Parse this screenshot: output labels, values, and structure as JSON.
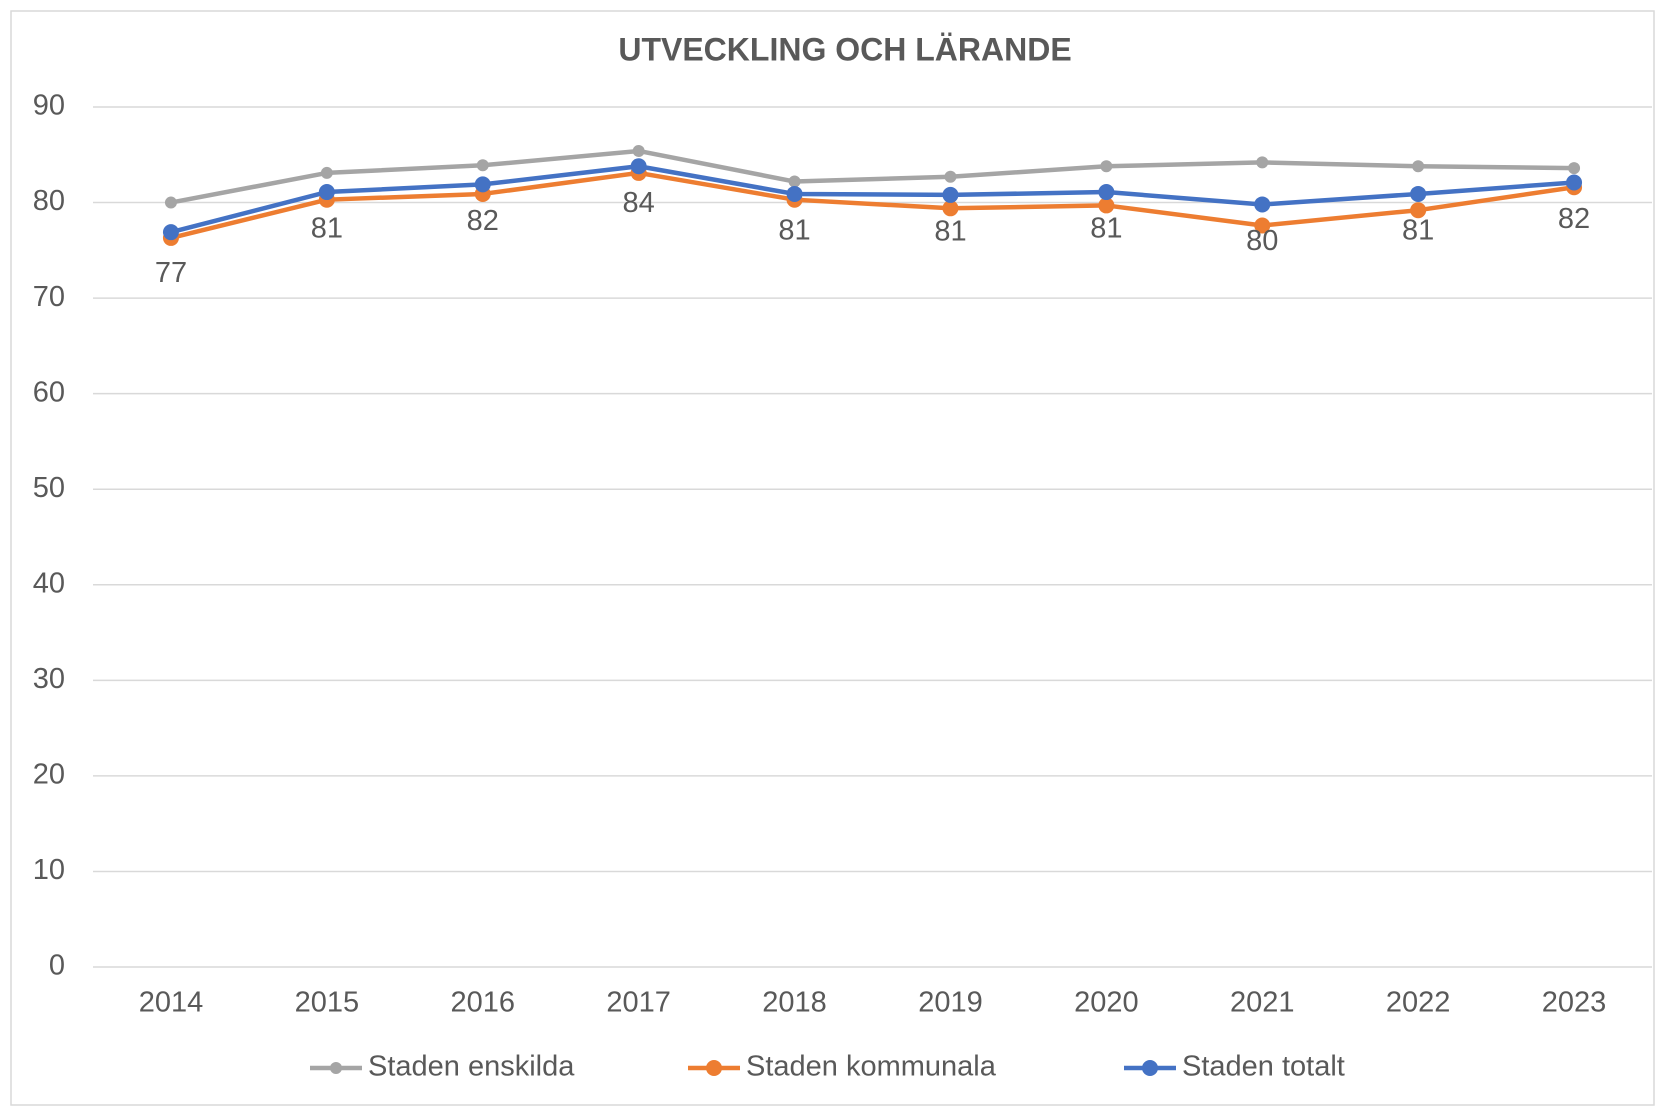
{
  "chart_data": {
    "type": "line",
    "title": "UTVECKLING OCH LÄRANDE",
    "categories": [
      "2014",
      "2015",
      "2016",
      "2017",
      "2018",
      "2019",
      "2020",
      "2021",
      "2022",
      "2023"
    ],
    "series": [
      {
        "name": "Staden enskilda",
        "color": "#a5a5a5",
        "values": [
          80.0,
          83.1,
          83.9,
          85.4,
          82.2,
          82.7,
          83.8,
          84.2,
          83.8,
          83.6
        ]
      },
      {
        "name": "Staden kommunala",
        "color": "#ed7d31",
        "values": [
          76.3,
          80.3,
          80.9,
          83.1,
          80.3,
          79.4,
          79.7,
          77.6,
          79.2,
          81.6
        ]
      },
      {
        "name": "Staden totalt",
        "color": "#4472c4",
        "values": [
          76.9,
          81.1,
          81.9,
          83.8,
          80.9,
          80.8,
          81.1,
          79.8,
          80.9,
          82.1
        ],
        "value_labels": [
          "77",
          "81",
          "82",
          "84",
          "81",
          "81",
          "81",
          "80",
          "81",
          "82"
        ]
      }
    ],
    "ylim": [
      0,
      90
    ],
    "yticks": [
      0,
      10,
      20,
      30,
      40,
      50,
      60,
      70,
      80,
      90
    ],
    "grid": true,
    "legend": "bottom"
  }
}
